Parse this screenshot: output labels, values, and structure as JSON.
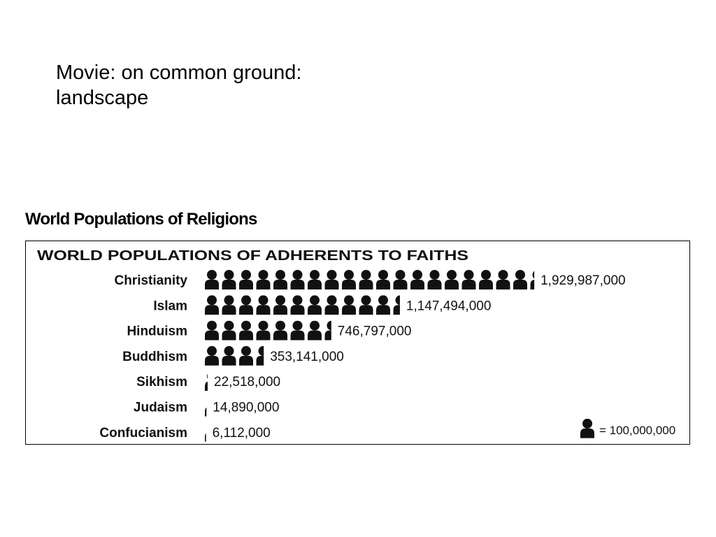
{
  "slide": {
    "title_line1": "Movie: on common ground:",
    "title_line2": "landscape"
  },
  "figure": {
    "caption": "World Populations of Religions"
  },
  "chart_data": {
    "type": "bar",
    "title": "WORLD POPULATIONS OF ADHERENTS TO FAITHS",
    "categories": [
      "Christianity",
      "Islam",
      "Hinduism",
      "Buddhism",
      "Sikhism",
      "Judaism",
      "Confucianism"
    ],
    "values": [
      1929987000,
      1147494000,
      746797000,
      353141000,
      22518000,
      14890000,
      6112000
    ],
    "value_labels": [
      "1,929,987,000",
      "1,147,494,000",
      "746,797,000",
      "353,141,000",
      "22,518,000",
      "14,890,000",
      "6,112,000"
    ],
    "unit_value": 100000000,
    "legend": {
      "label": "= 100,000,000",
      "icon": "person-icon",
      "placement": "bottom-right"
    },
    "xlabel": "",
    "ylabel": "",
    "grid": false
  },
  "colors": {
    "icon": "#111111",
    "text": "#111111",
    "border": "#000000"
  }
}
